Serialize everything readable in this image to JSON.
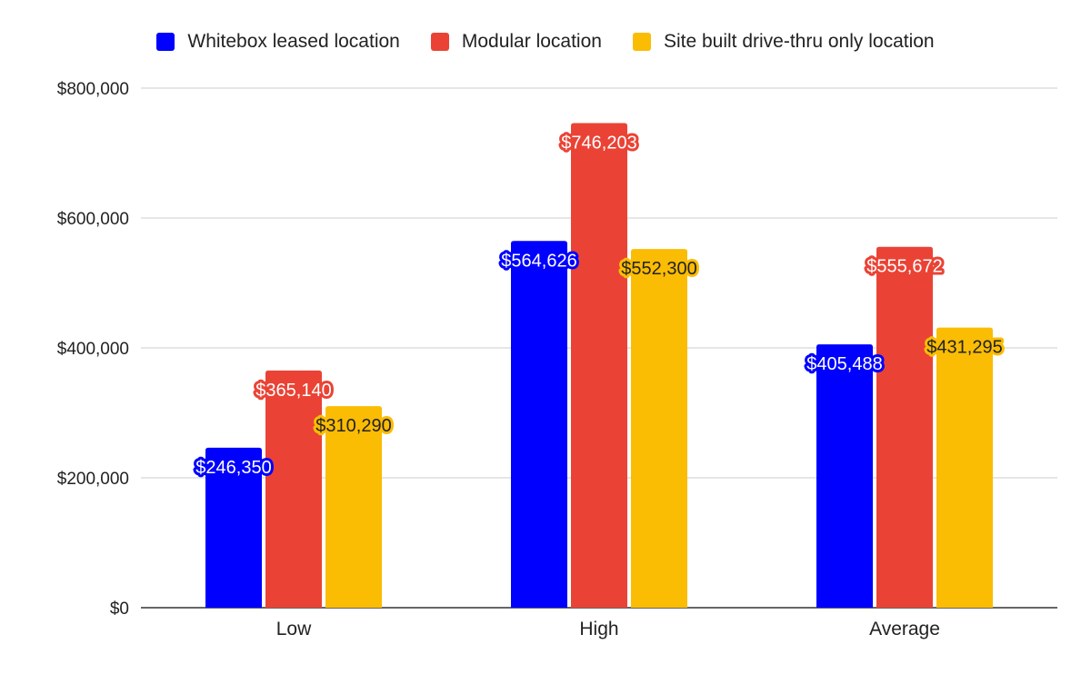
{
  "chart_data": {
    "type": "bar",
    "categories": [
      "Low",
      "High",
      "Average"
    ],
    "series": [
      {
        "name": "Whitebox leased location",
        "color": "#0000ff",
        "values": [
          246350,
          564626,
          405488
        ],
        "labels": [
          "$246,350",
          "$564,626",
          "$405,488"
        ]
      },
      {
        "name": "Modular location",
        "color": "#ea4335",
        "values": [
          365140,
          746203,
          555672
        ],
        "labels": [
          "$365,140",
          "$746,203",
          "$555,672"
        ]
      },
      {
        "name": "Site built drive-thru only location",
        "color": "#fbbc04",
        "values": [
          310290,
          552300,
          431295
        ],
        "labels": [
          "$310,290",
          "$552,300",
          "$431,295"
        ]
      }
    ],
    "ylim": [
      0,
      800000
    ],
    "yticks": [
      0,
      200000,
      400000,
      600000,
      800000
    ],
    "ytick_labels": [
      "$0",
      "$200,000",
      "$400,000",
      "$600,000",
      "$800,000"
    ],
    "grid": true,
    "legend_position": "top-center"
  }
}
